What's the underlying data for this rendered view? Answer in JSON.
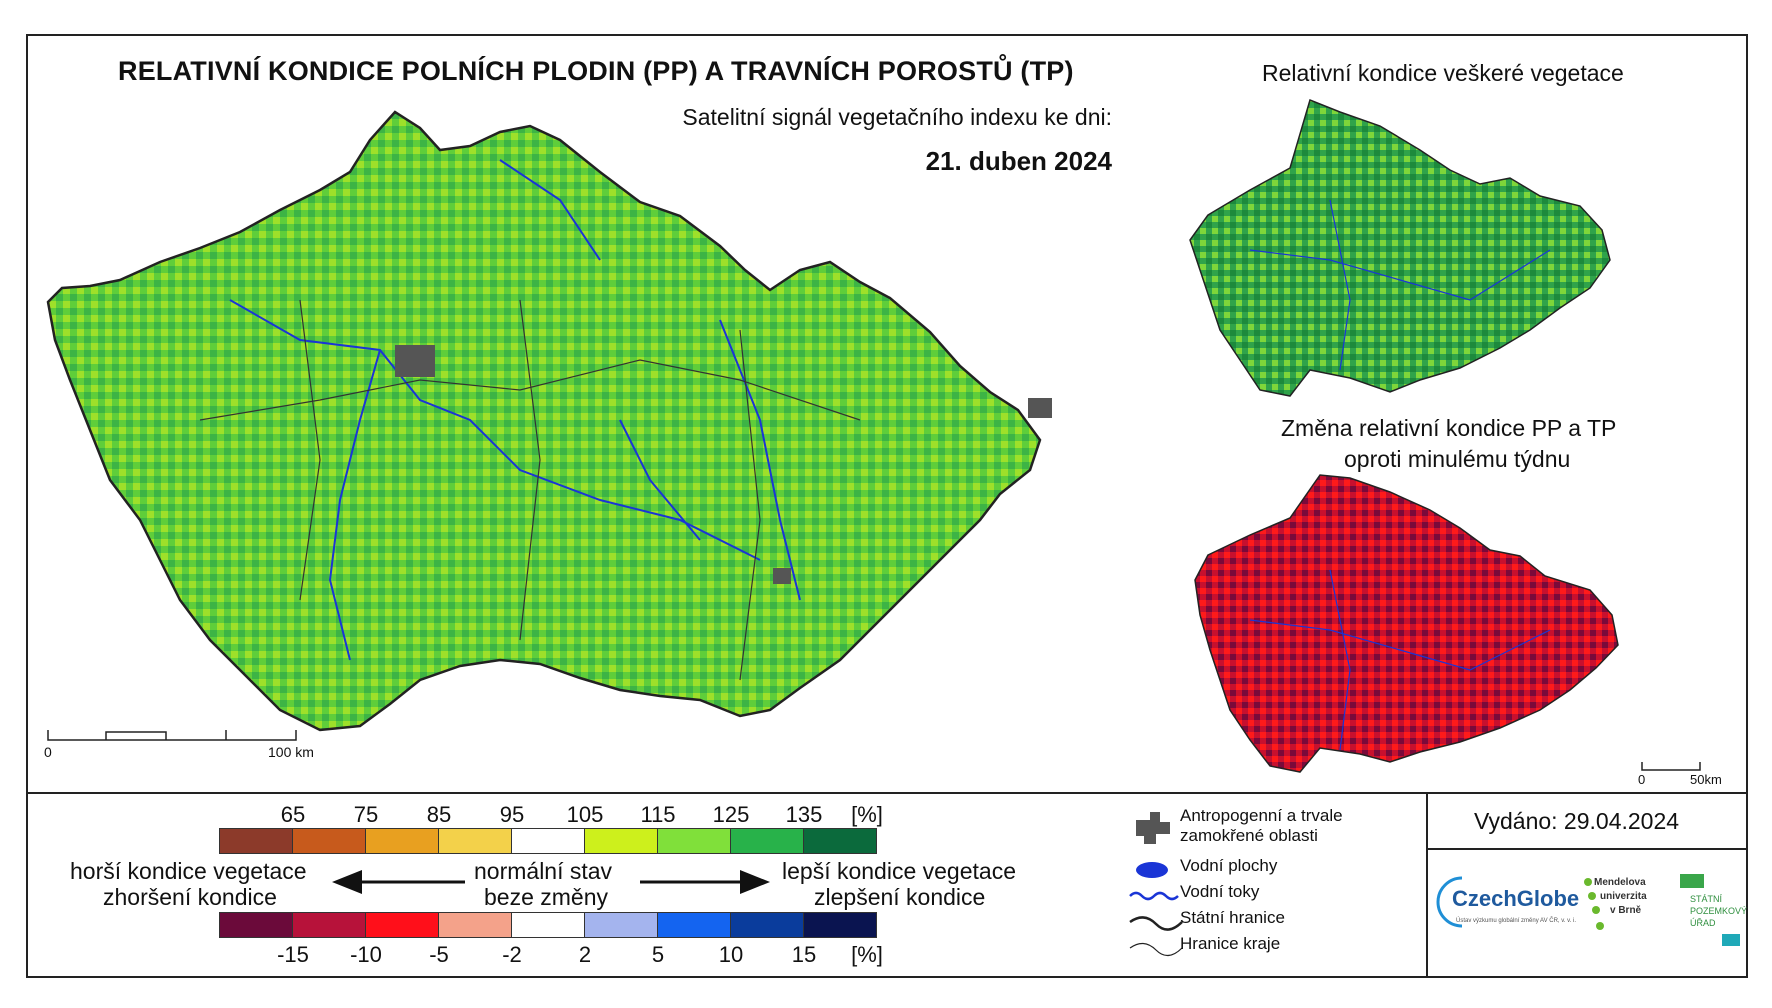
{
  "main_title": "RELATIVNÍ KONDICE POLNÍCH PLODIN (PP) A TRAVNÍCH POROSTŮ (TP)",
  "subtitle": "Satelitní signál vegetačního indexu ke dni:",
  "date": "21. duben 2024",
  "inset_top_title": "Relativní kondice veškeré vegetace",
  "inset_bottom_title_line1": "Změna relativní kondice PP a TP",
  "inset_bottom_title_line2": "oproti minulému týdnu",
  "scalebar_main": {
    "start": "0",
    "end": "100 km"
  },
  "scalebar_inset": {
    "start": "0",
    "end": "50km"
  },
  "legend_condition": {
    "ticks": [
      "65",
      "75",
      "85",
      "95",
      "105",
      "115",
      "125",
      "135",
      "[%]"
    ],
    "colors": [
      "#8c3a2a",
      "#c75a1c",
      "#e8a020",
      "#f3d14a",
      "#ffffff",
      "#cdf01c",
      "#80e03a",
      "#28b24a",
      "#0b6a3c"
    ]
  },
  "legend_change": {
    "ticks": [
      "-15",
      "-10",
      "-5",
      "-2",
      "2",
      "5",
      "10",
      "15",
      "[%]"
    ],
    "colors": [
      "#6b0a3a",
      "#b7123a",
      "#ff0f1a",
      "#f4a28a",
      "#ffffff",
      "#a4b4ee",
      "#1464f0",
      "#0a3c9c",
      "#0a1450"
    ]
  },
  "legend_text": {
    "left_line1": "horší kondice vegetace",
    "left_line2": "zhoršení kondice",
    "center_line1": "normální stav",
    "center_line2": "beze změny",
    "right_line1": "lepší kondice vegetace",
    "right_line2": "zlepšení kondice"
  },
  "map_legend": {
    "anthropogenic": "Antropogenní a trvale\nzamokřené oblasti",
    "anthropogenic_line1": "Antropogenní a trvale",
    "anthropogenic_line2": "zamokřené oblasti",
    "water_areas": "Vodní plochy",
    "rivers": "Vodní toky",
    "state_border": "Státní hranice",
    "region_border": "Hranice kraje"
  },
  "issued": "Vydáno: 29.04.2024",
  "logos": {
    "czechglobe": "CzechGlobe",
    "czechglobe_sub": "Ústav výzkumu globální změny AV ČR, v. v. i.",
    "mendel_line1": "Mendelova",
    "mendel_line2": "univerzita",
    "mendel_line3": "v Brně",
    "spu_line1": "STÁTNÍ",
    "spu_line2": "POZEMKOVÝ",
    "spu_line3": "ÚŘAD"
  },
  "colors": {
    "main_map_green": "#5fce3a",
    "inset_map_green": "#3fb83a",
    "change_map_red": "#d0102e",
    "river_blue": "#1a35d6",
    "anthropogenic_gray": "#555555"
  }
}
